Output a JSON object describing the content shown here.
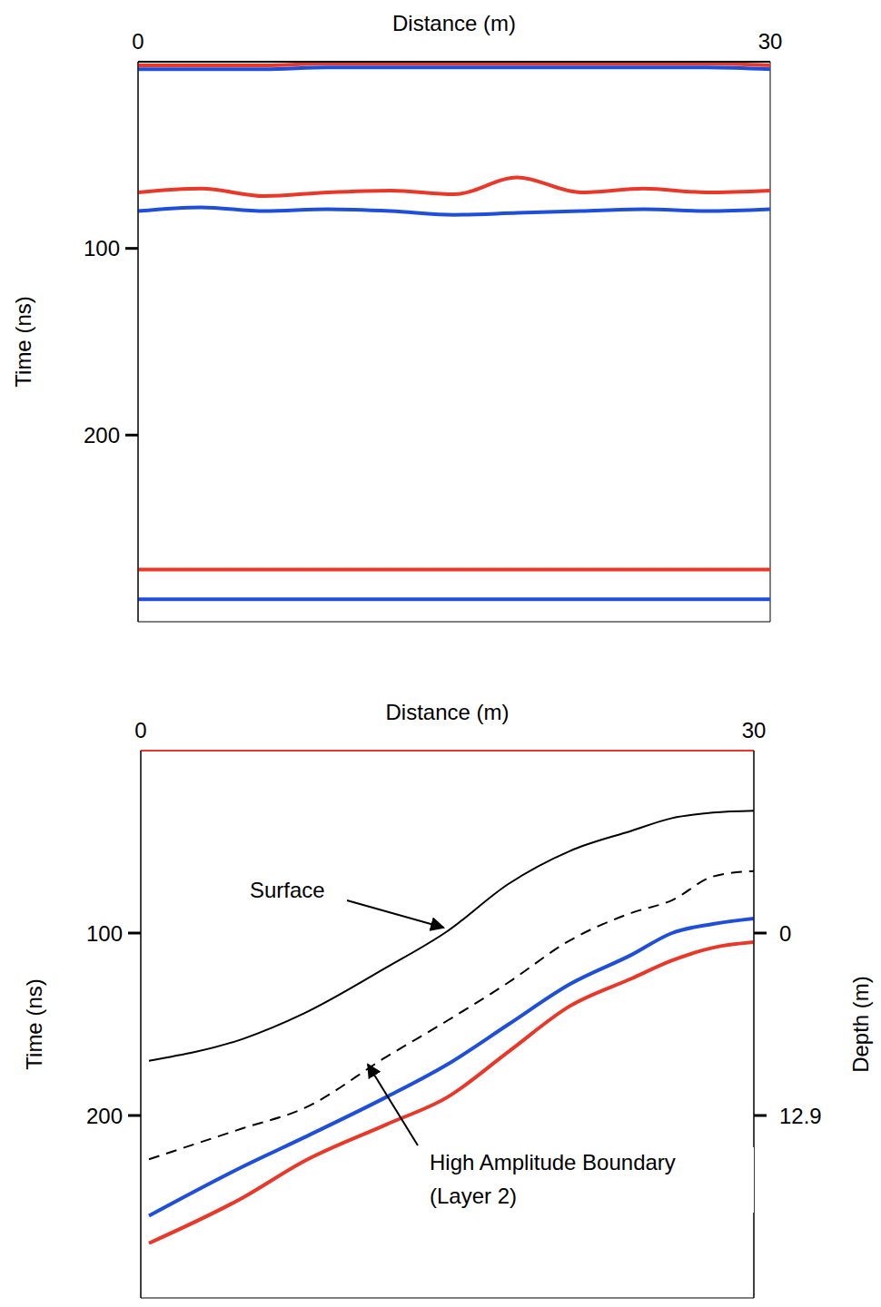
{
  "chart_data": [
    {
      "type": "line",
      "x_label": "Distance (m)",
      "y_label": "Time (ns)",
      "xlim": [
        0,
        30
      ],
      "xticks": [
        0,
        30
      ],
      "ylim": [
        0,
        300
      ],
      "yticks": [
        100,
        200
      ],
      "x": [
        0,
        3,
        6,
        9,
        12,
        15,
        18,
        21,
        24,
        27,
        30
      ],
      "series": [
        {
          "color": "#e8382a",
          "line_style": "solid",
          "values": [
            2,
            2,
            2,
            1,
            1,
            1,
            1,
            1,
            1,
            1,
            2
          ]
        },
        {
          "color": "#1f4fd8",
          "line_style": "solid",
          "values": [
            4,
            4,
            4,
            3,
            3,
            3,
            3,
            3,
            3,
            3,
            4
          ]
        },
        {
          "color": "#e8382a",
          "line_style": "solid",
          "values": [
            70,
            68,
            72,
            70,
            69,
            71,
            62,
            70,
            68,
            70,
            69
          ]
        },
        {
          "color": "#1f4fd8",
          "line_style": "solid",
          "values": [
            80,
            78,
            80,
            79,
            80,
            82,
            81,
            80,
            79,
            80,
            79
          ]
        },
        {
          "color": "#e8382a",
          "line_style": "solid",
          "values": [
            272,
            272,
            272,
            272,
            272,
            272,
            272,
            272,
            272,
            272,
            272
          ]
        },
        {
          "color": "#1f4fd8",
          "line_style": "solid",
          "values": [
            288,
            288,
            288,
            288,
            288,
            288,
            288,
            288,
            288,
            288,
            288
          ]
        }
      ]
    },
    {
      "type": "line",
      "x_label": "Distance (m)",
      "y_label": "Time (ns)",
      "y2_label": "Depth (m)",
      "xlim": [
        0,
        30
      ],
      "xticks": [
        0,
        30
      ],
      "ylim": [
        0,
        300
      ],
      "yticks": [
        100,
        200
      ],
      "y2lim": [
        -12.9,
        25.8
      ],
      "y2ticks": [
        0,
        12.9
      ],
      "x": [
        0.4,
        5,
        8,
        12,
        15,
        18,
        21,
        24,
        26,
        28,
        30
      ],
      "series": [
        {
          "color": "#000000",
          "line_style": "solid",
          "values": [
            170,
            158,
            144,
            119,
            99,
            73,
            55,
            44,
            37,
            34,
            33
          ]
        },
        {
          "color": "#000000",
          "line_style": "dashed",
          "values": [
            224,
            207,
            196,
            168,
            148,
            127,
            104,
            89,
            82,
            69,
            66
          ]
        },
        {
          "color": "#1f4fd8",
          "line_style": "solid",
          "values": [
            255,
            228,
            212,
            190,
            172,
            150,
            128,
            112,
            100,
            95,
            92
          ]
        },
        {
          "color": "#e8382a",
          "line_style": "solid",
          "values": [
            270,
            245,
            225,
            205,
            190,
            165,
            140,
            125,
            115,
            108,
            105
          ]
        }
      ],
      "annotations": [
        "Surface",
        "High Amplitude Boundary (Layer 2)"
      ]
    }
  ]
}
